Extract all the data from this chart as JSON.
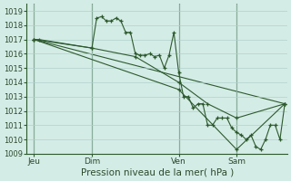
{
  "title": "Pression niveau de la mer( hPa )",
  "bg_color": "#d4ece6",
  "grid_color": "#b0d0cc",
  "line_color": "#2d5a2d",
  "ylim": [
    1009,
    1019.5
  ],
  "yticks": [
    1009,
    1010,
    1011,
    1012,
    1013,
    1014,
    1015,
    1016,
    1017,
    1018,
    1019
  ],
  "xlim": [
    0,
    108
  ],
  "xtick_labels": [
    "Jeu",
    "Dim",
    "Ven",
    "Sam"
  ],
  "xtick_positions": [
    3,
    27,
    63,
    87
  ],
  "vline_positions": [
    3,
    27,
    63,
    87
  ],
  "series1_x": [
    3,
    5,
    27,
    29,
    31,
    33,
    35,
    37,
    39,
    41,
    43,
    45,
    47,
    49,
    51,
    53,
    55,
    57,
    59,
    61,
    63,
    65,
    67,
    69,
    71,
    73,
    75,
    77,
    79,
    81,
    83,
    85,
    87,
    89,
    91,
    93,
    95,
    97,
    99,
    101,
    103,
    105,
    107
  ],
  "series1_y": [
    1017.0,
    1017.0,
    1016.4,
    1018.5,
    1018.6,
    1018.3,
    1018.3,
    1018.5,
    1018.3,
    1017.5,
    1017.5,
    1016.0,
    1015.9,
    1015.9,
    1016.0,
    1015.8,
    1015.9,
    1015.0,
    1015.9,
    1017.5,
    1014.7,
    1013.0,
    1013.0,
    1012.2,
    1012.5,
    1012.5,
    1011.0,
    1011.0,
    1011.5,
    1011.5,
    1011.5,
    1010.8,
    1010.5,
    1010.3,
    1010.0,
    1010.3,
    1009.5,
    1009.3,
    1010.0,
    1011.0,
    1011.0,
    1010.0,
    1012.5
  ],
  "series2_x": [
    3,
    27,
    45,
    63,
    75,
    87,
    107
  ],
  "series2_y": [
    1017.0,
    1016.4,
    1015.8,
    1014.0,
    1012.5,
    1011.5,
    1012.5
  ],
  "series3_x": [
    3,
    63,
    87,
    107
  ],
  "series3_y": [
    1017.0,
    1013.5,
    1009.3,
    1012.5
  ],
  "series4_x": [
    3,
    107
  ],
  "series4_y": [
    1017.0,
    1012.5
  ]
}
